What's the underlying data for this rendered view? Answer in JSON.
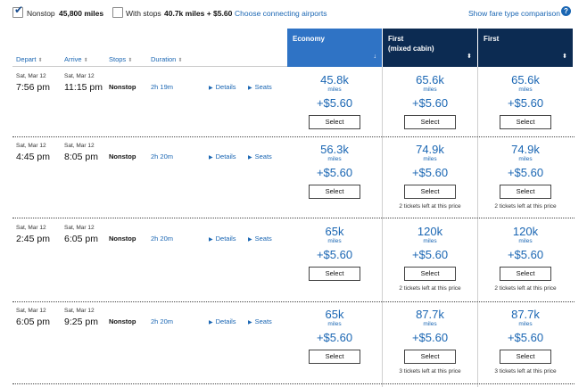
{
  "filters": {
    "nonstop": {
      "label": "Nonstop",
      "checked": true,
      "value": "45,800 miles"
    },
    "with_stops": {
      "label": "With stops",
      "checked": false,
      "value": "40.7k miles + $5.60"
    },
    "connecting_link": "Choose connecting airports",
    "comparison_link": "Show fare type comparison",
    "help_glyph": "?"
  },
  "columns": {
    "depart": "Depart",
    "arrive": "Arrive",
    "stops": "Stops",
    "duration": "Duration",
    "sort_glyph": "⬍",
    "fare_sort_glyph": "⬍",
    "eco_sort_glyph": "↓"
  },
  "fare_types": [
    {
      "line1": "Economy",
      "line2": ""
    },
    {
      "line1": "First",
      "line2": "(mixed cabin)"
    },
    {
      "line1": "First",
      "line2": ""
    }
  ],
  "labels": {
    "details": "Details",
    "seats": "Seats",
    "select": "Select",
    "miles": "miles"
  },
  "flights": [
    {
      "depart_date": "Sat, Mar 12",
      "depart_time": "7:56 pm",
      "arrive_date": "Sat, Mar 12",
      "arrive_time": "11:15 pm",
      "stops": "Nonstop",
      "duration": "2h 19m",
      "fares": [
        {
          "miles": "45.8k",
          "tax": "+$5.60",
          "note": ""
        },
        {
          "miles": "65.6k",
          "tax": "+$5.60",
          "note": ""
        },
        {
          "miles": "65.6k",
          "tax": "+$5.60",
          "note": ""
        }
      ]
    },
    {
      "depart_date": "Sat, Mar 12",
      "depart_time": "4:45 pm",
      "arrive_date": "Sat, Mar 12",
      "arrive_time": "8:05 pm",
      "stops": "Nonstop",
      "duration": "2h 20m",
      "fares": [
        {
          "miles": "56.3k",
          "tax": "+$5.60",
          "note": ""
        },
        {
          "miles": "74.9k",
          "tax": "+$5.60",
          "note": "2 tickets left at this price"
        },
        {
          "miles": "74.9k",
          "tax": "+$5.60",
          "note": "2 tickets left at this price"
        }
      ]
    },
    {
      "depart_date": "Sat, Mar 12",
      "depart_time": "2:45 pm",
      "arrive_date": "Sat, Mar 12",
      "arrive_time": "6:05 pm",
      "stops": "Nonstop",
      "duration": "2h 20m",
      "fares": [
        {
          "miles": "65k",
          "tax": "+$5.60",
          "note": ""
        },
        {
          "miles": "120k",
          "tax": "+$5.60",
          "note": "2 tickets left at this price"
        },
        {
          "miles": "120k",
          "tax": "+$5.60",
          "note": "2 tickets left at this price"
        }
      ]
    },
    {
      "depart_date": "Sat, Mar 12",
      "depart_time": "6:05 pm",
      "arrive_date": "Sat, Mar 12",
      "arrive_time": "9:25 pm",
      "stops": "Nonstop",
      "duration": "2h 20m",
      "fares": [
        {
          "miles": "65k",
          "tax": "+$5.60",
          "note": ""
        },
        {
          "miles": "87.7k",
          "tax": "+$5.60",
          "note": "3 tickets left at this price"
        },
        {
          "miles": "87.7k",
          "tax": "+$5.60",
          "note": "3 tickets left at this price"
        }
      ]
    }
  ],
  "colors": {
    "link": "#1a66b3",
    "economy_header": "#2f73c5",
    "first_header": "#0c2b52"
  }
}
